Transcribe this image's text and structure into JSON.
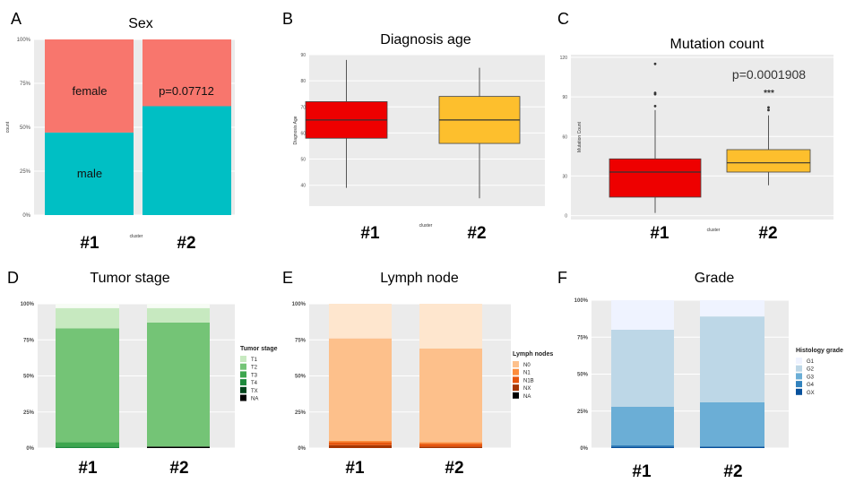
{
  "chart_data": [
    {
      "id": "A",
      "type": "bar",
      "stacked": true,
      "panel_label": "A",
      "title": "Sex",
      "ylabel": "count",
      "xlabel": "cluster",
      "yticks": [
        "0%",
        "25%",
        "50%",
        "75%",
        "100%"
      ],
      "ylim": [
        0,
        1
      ],
      "categories": [
        "#1",
        "#2"
      ],
      "series": [
        {
          "name": "male",
          "color": "#00BFC4",
          "values": [
            0.47,
            0.62
          ]
        },
        {
          "name": "female",
          "color": "#F8766D",
          "values": [
            0.53,
            0.38
          ]
        }
      ],
      "annotations": [
        "female",
        "male",
        "p=0.07712"
      ],
      "grid": true,
      "legend": "none"
    },
    {
      "id": "B",
      "type": "box",
      "panel_label": "B",
      "title": "Diagnosis age",
      "ylabel": "Diagnosis Age",
      "xlabel": "cluster",
      "yticks": [
        "40",
        "50",
        "60",
        "70",
        "80",
        "90"
      ],
      "ylim": [
        32,
        90
      ],
      "categories": [
        "#1",
        "#2"
      ],
      "boxes": [
        {
          "color": "#EE0000",
          "min": 39,
          "q1": 58,
          "median": 65,
          "q3": 72,
          "max": 88
        },
        {
          "color": "#FDBF2D",
          "min": 35,
          "q1": 56,
          "median": 65,
          "q3": 74,
          "max": 85
        }
      ],
      "grid": true
    },
    {
      "id": "C",
      "type": "box",
      "panel_label": "C",
      "title": "Mutation count",
      "ylabel": "Mutation Count",
      "xlabel": "cluster",
      "yticks": [
        "0",
        "30",
        "60",
        "90",
        "120"
      ],
      "ylim": [
        -3,
        122
      ],
      "categories": [
        "#1",
        "#2"
      ],
      "boxes": [
        {
          "color": "#EE0000",
          "min": 2,
          "q1": 14,
          "median": 33,
          "q3": 43,
          "max": 80,
          "outliers": [
            83,
            92,
            93,
            115
          ]
        },
        {
          "color": "#FDBF2D",
          "min": 23,
          "q1": 33,
          "median": 40,
          "q3": 50,
          "max": 76,
          "outliers": [
            80,
            82
          ]
        }
      ],
      "annotations": [
        "p=0.0001908",
        "***"
      ],
      "grid": true
    },
    {
      "id": "D",
      "type": "bar",
      "stacked": true,
      "panel_label": "D",
      "title": "Tumor stage",
      "yticks": [
        "0%",
        "25%",
        "50%",
        "75%",
        "100%"
      ],
      "ylim": [
        0,
        1
      ],
      "categories": [
        "#1",
        "#2"
      ],
      "legend_title": "Tumor stage",
      "legend": "right",
      "series": [
        {
          "name": "NA",
          "color": "#000000",
          "values": [
            0.0,
            0.01
          ]
        },
        {
          "name": "TX",
          "color": "#00441B",
          "values": [
            0.0,
            0.0
          ]
        },
        {
          "name": "T4",
          "color": "#1D8A3C",
          "values": [
            0.01,
            0.0
          ]
        },
        {
          "name": "T3",
          "color": "#3DA64E",
          "values": [
            0.03,
            0.0
          ]
        },
        {
          "name": "T2",
          "color": "#74C476",
          "values": [
            0.79,
            0.86
          ]
        },
        {
          "name": "T1",
          "color": "#C7E9C0",
          "values": [
            0.14,
            0.1
          ]
        },
        {
          "name": "",
          "color": "#F7FCF5",
          "values": [
            0.03,
            0.03
          ]
        }
      ],
      "grid": true
    },
    {
      "id": "E",
      "type": "bar",
      "stacked": true,
      "panel_label": "E",
      "title": "Lymph node",
      "yticks": [
        "0%",
        "25%",
        "50%",
        "75%",
        "100%"
      ],
      "ylim": [
        0,
        1
      ],
      "categories": [
        "#1",
        "#2"
      ],
      "legend_title": "Lymph nodes",
      "legend": "right",
      "series": [
        {
          "name": "NA",
          "color": "#000000",
          "values": [
            0.0,
            0.0
          ]
        },
        {
          "name": "NX",
          "color": "#A63603",
          "values": [
            0.02,
            0.01
          ]
        },
        {
          "name": "N1B",
          "color": "#E6550D",
          "values": [
            0.02,
            0.02
          ]
        },
        {
          "name": "N1",
          "color": "#FD8D3C",
          "values": [
            0.01,
            0.01
          ]
        },
        {
          "name": "N0",
          "color": "#FDC08B",
          "values": [
            0.71,
            0.65
          ]
        },
        {
          "name": "",
          "color": "#FEE6CE",
          "values": [
            0.24,
            0.31
          ]
        }
      ],
      "grid": true
    },
    {
      "id": "F",
      "type": "bar",
      "stacked": true,
      "panel_label": "F",
      "title": "Grade",
      "yticks": [
        "0%",
        "25%",
        "50%",
        "75%",
        "100%"
      ],
      "ylim": [
        0,
        1
      ],
      "categories": [
        "#1",
        "#2"
      ],
      "legend_title": "Histology grade",
      "legend": "right",
      "series": [
        {
          "name": "GX",
          "color": "#08519C",
          "values": [
            0.01,
            0.01
          ]
        },
        {
          "name": "G4",
          "color": "#3182BD",
          "values": [
            0.01,
            0.0
          ]
        },
        {
          "name": "G3",
          "color": "#6BAED6",
          "values": [
            0.26,
            0.3
          ]
        },
        {
          "name": "G2",
          "color": "#BDD7E7",
          "values": [
            0.52,
            0.58
          ]
        },
        {
          "name": "G1",
          "color": "#EFF3FF",
          "values": [
            0.2,
            0.11
          ]
        }
      ],
      "grid": true
    }
  ]
}
